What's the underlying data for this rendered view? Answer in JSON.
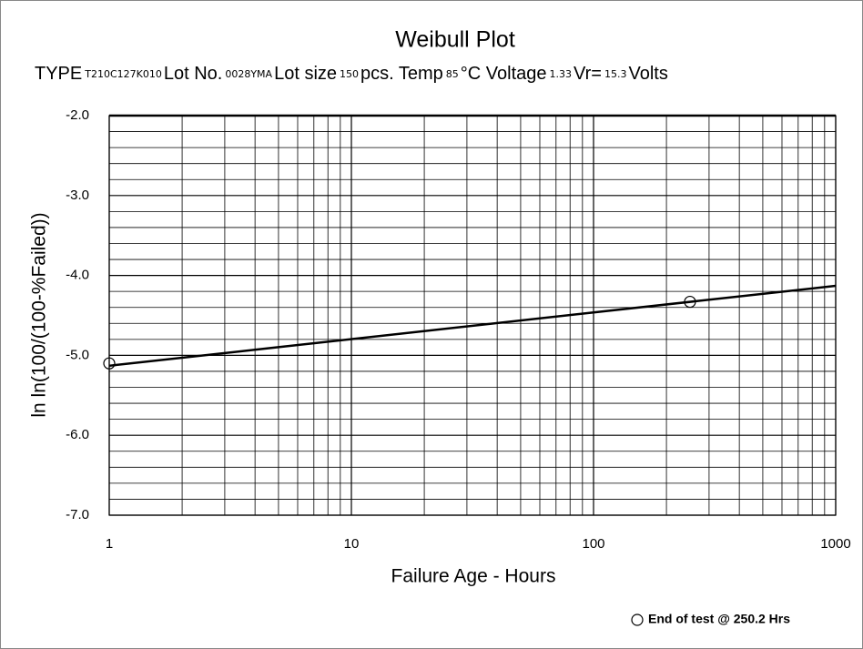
{
  "chart_data": {
    "type": "line",
    "title": "Weibull Plot",
    "subtitle_parts": [
      "TYPE",
      "T210C127K010",
      "Lot No.",
      "0028YMA",
      "Lot size",
      "150",
      "pcs.  Temp",
      "85",
      "°C  Voltage",
      "1.33",
      "Vr=",
      "15.3",
      "Volts"
    ],
    "x_label": "Failure Age - Hours",
    "y_label": "ln ln(100/(100-%Failed))",
    "xscale": "log",
    "xlim": [
      1,
      1000
    ],
    "xticks": [
      1,
      10,
      100,
      1000
    ],
    "ylim": [
      -7,
      -2
    ],
    "yticks": [
      {
        "value": -7,
        "label": "-7.0"
      },
      {
        "value": -6,
        "label": "-6.0"
      },
      {
        "value": -5,
        "label": "-5.0"
      },
      {
        "value": -4,
        "label": "-4.0"
      },
      {
        "value": -3,
        "label": "-3.0"
      },
      {
        "value": -2,
        "label": "-2.0"
      }
    ],
    "grid": true,
    "series": [
      {
        "color": "#000000",
        "style": "line",
        "x": [
          1,
          1000
        ],
        "values": [
          -5.13,
          -4.13
        ]
      },
      {
        "name": "End of test @ 250.2 Hrs",
        "color": "#000000",
        "style": "open-circle",
        "x": [
          1,
          250.2
        ],
        "values": [
          -5.1,
          -4.33
        ]
      }
    ],
    "legend": "lower right"
  }
}
